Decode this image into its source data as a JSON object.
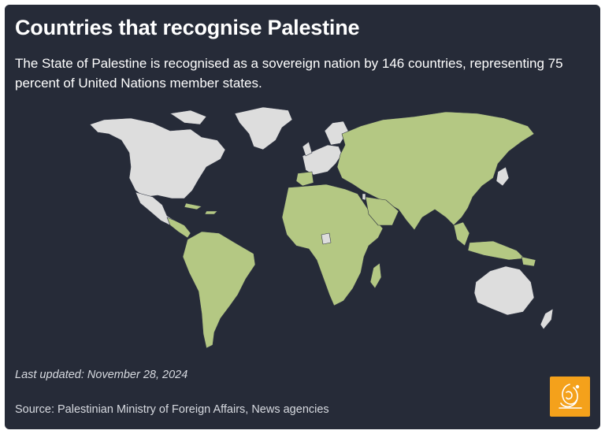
{
  "header": {
    "title": "Countries that recognise Palestine",
    "subtitle": "The State of Palestine is recognised as a sovereign nation by 146 countries, representing 75 percent of United Nations member states."
  },
  "map": {
    "legend": [],
    "colors": {
      "background": "#262b38",
      "recognises": "#b4c883",
      "does_not_recognise": "#dddddd",
      "borders": "#2f3442"
    }
  },
  "footer": {
    "last_updated": "Last updated: November 28, 2024",
    "source": "Source: Palestinian Ministry of Foreign Affairs, News agencies"
  },
  "logo": {
    "icon": "al-jazeera-logo-icon",
    "color": "#f4a11b"
  }
}
